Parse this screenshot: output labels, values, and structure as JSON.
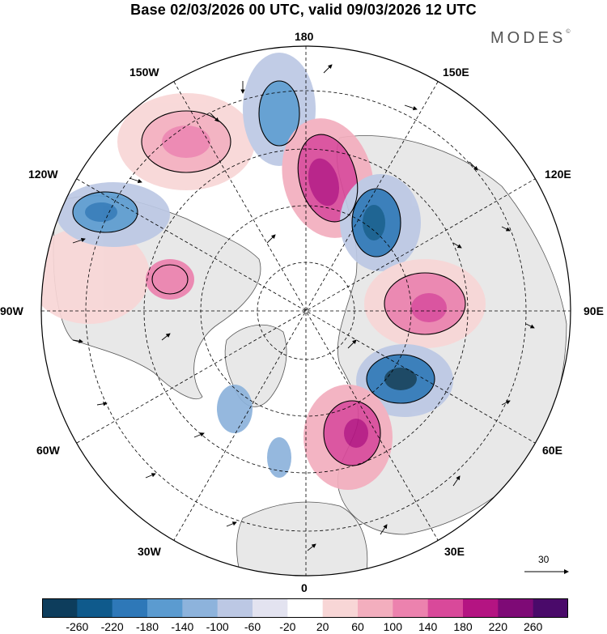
{
  "title": "Base 02/03/2026 00 UTC, valid 09/03/2026 12 UTC",
  "brand": "MODES",
  "brand_mark": "©",
  "longitude_labels": {
    "top": "180",
    "bottom": "0",
    "left": "90W",
    "right": "90E",
    "upper_left_1": "150W",
    "upper_left_2": "120W",
    "upper_right_1": "150E",
    "upper_right_2": "120E",
    "lower_left_1": "60W",
    "lower_left_2": "30W",
    "lower_right_1": "60E",
    "lower_right_2": "30E"
  },
  "vector_key": "30",
  "colorbar": {
    "ticks": [
      "-260",
      "-220",
      "-180",
      "-140",
      "-100",
      "-60",
      "-20",
      "20",
      "60",
      "100",
      "140",
      "180",
      "220",
      "260"
    ],
    "colors": [
      "#0d3d5c",
      "#0f5a8c",
      "#2e78b8",
      "#5b9bd0",
      "#8db3dc",
      "#bcc8e4",
      "#e3e3f0",
      "#ffffff",
      "#f8d6d6",
      "#f3aebe",
      "#ec82ae",
      "#d9499a",
      "#b41482",
      "#7e0a76",
      "#4a0a6a"
    ]
  },
  "map_colors": {
    "land": "#e8e8e8",
    "ocean": "#ffffff"
  }
}
